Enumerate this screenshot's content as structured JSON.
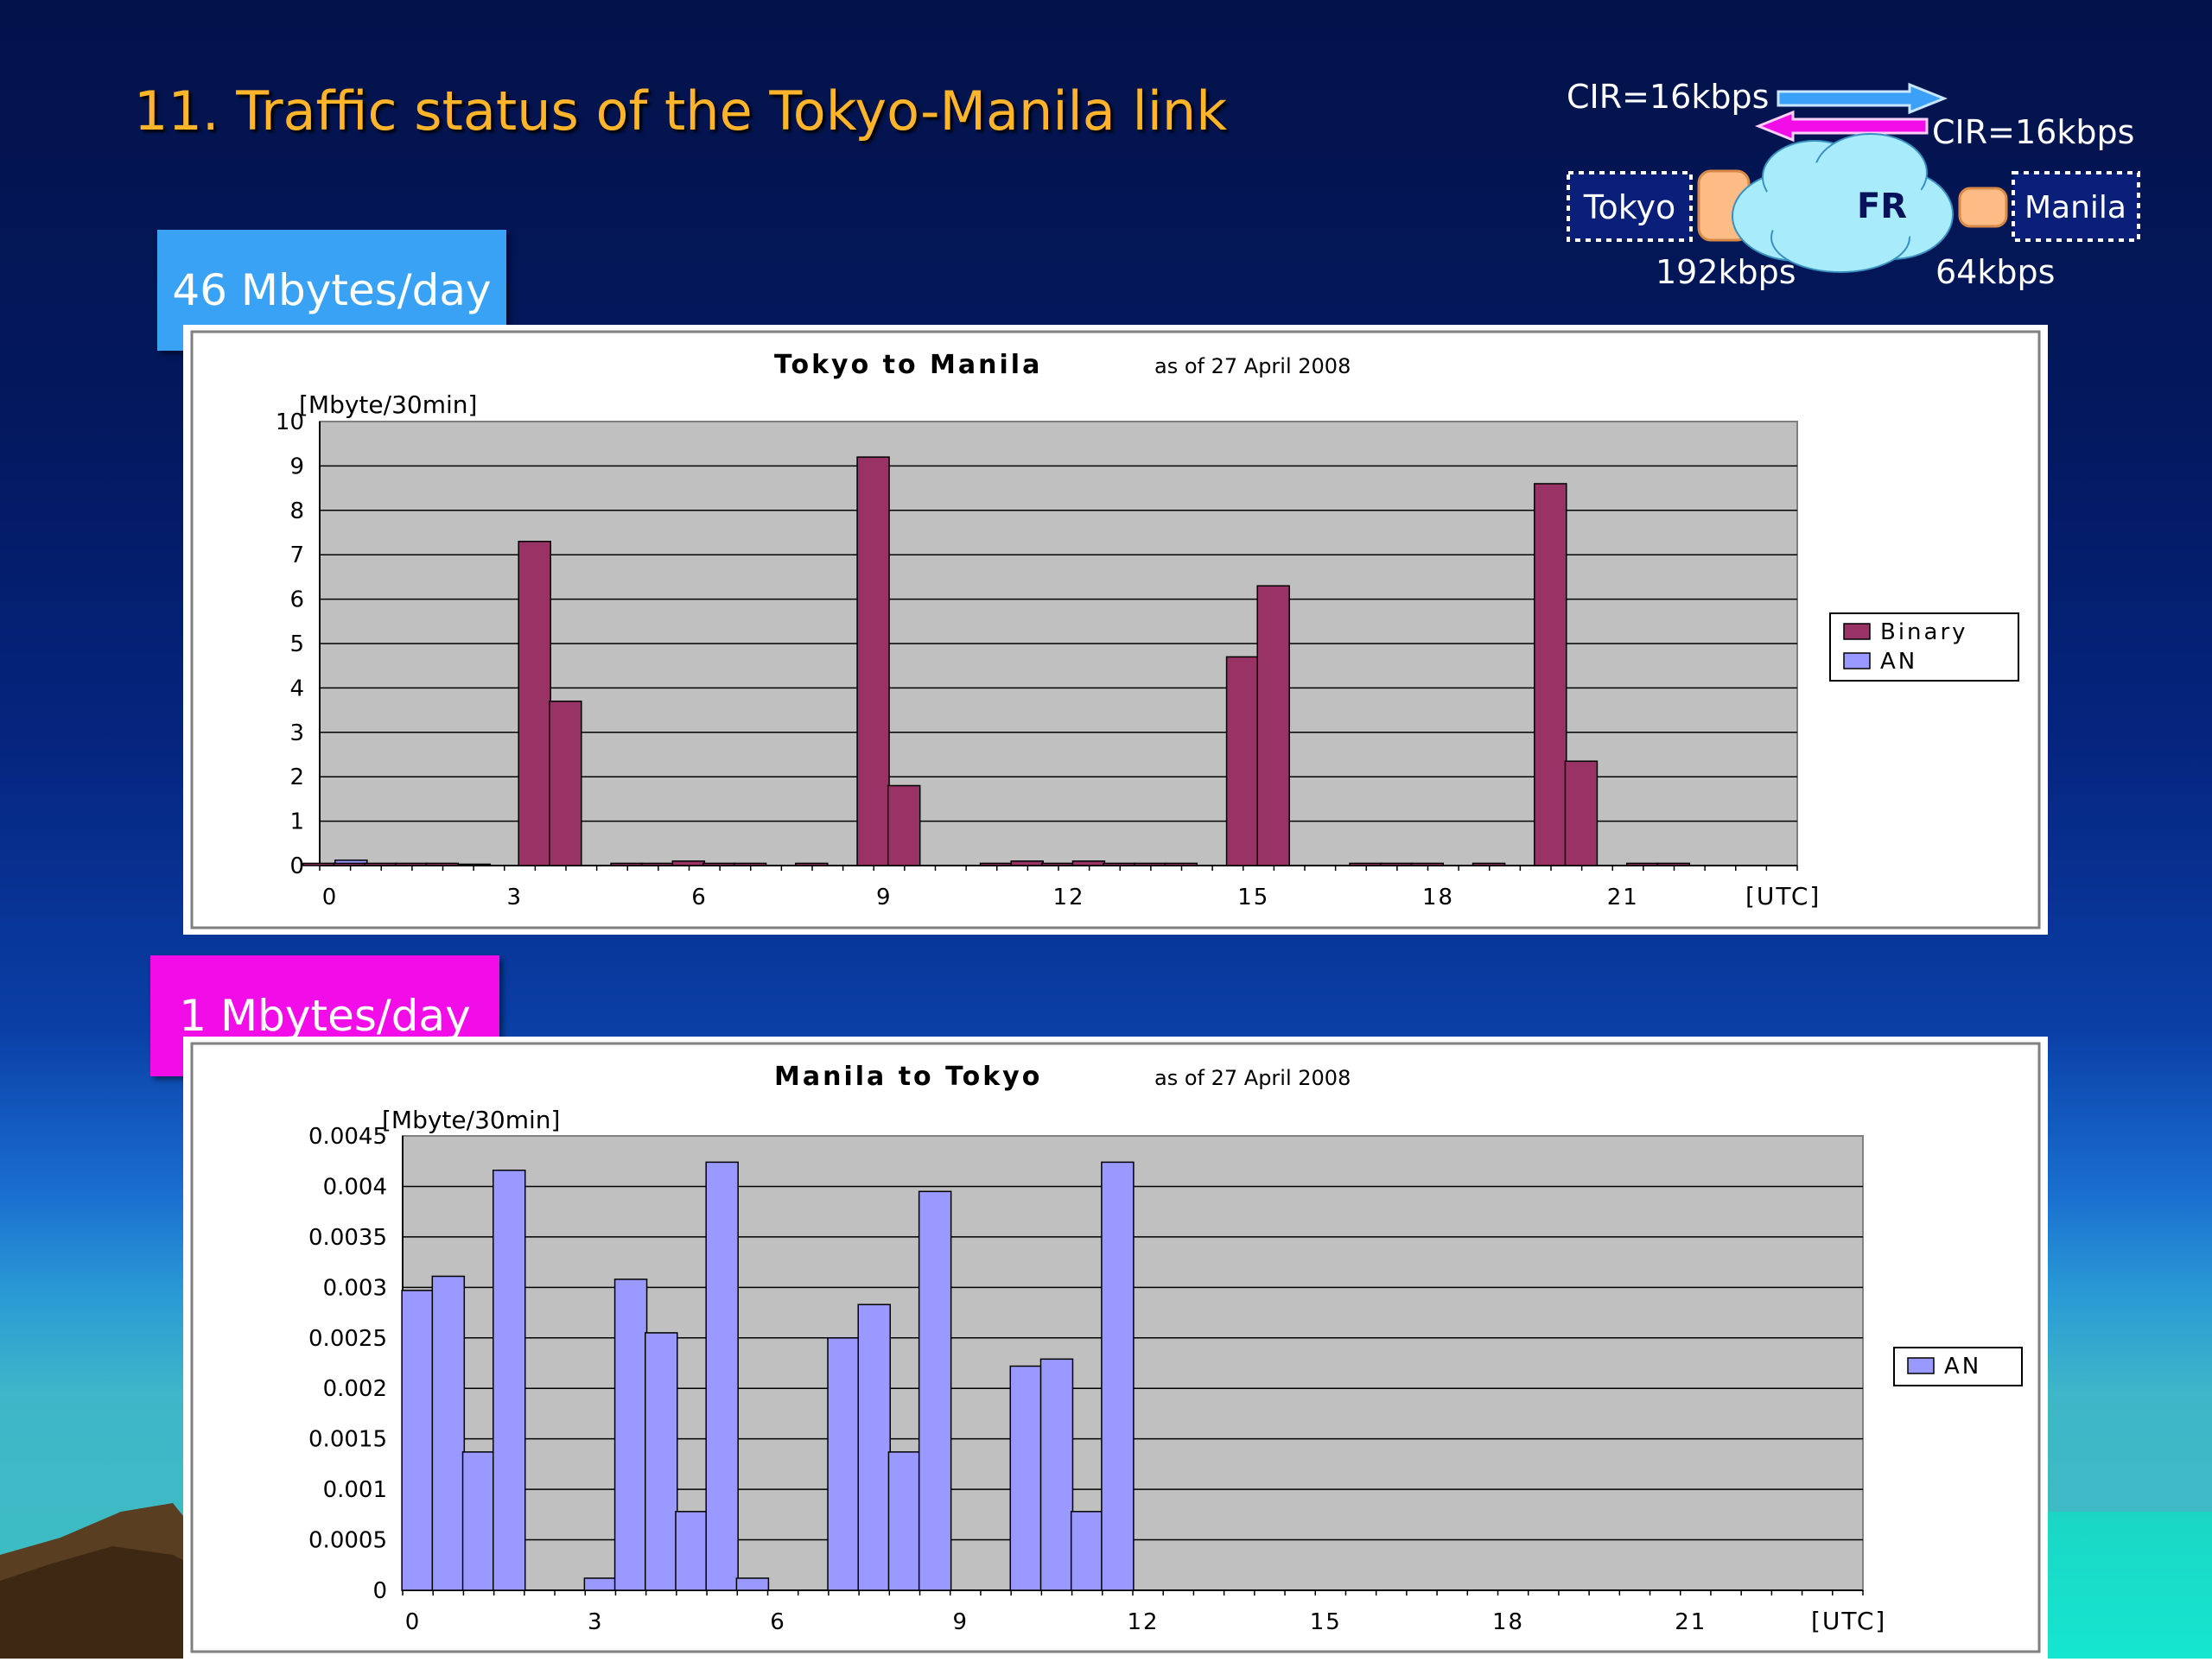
{
  "title": "11.  Traffic status of the Tokyo-Manila link",
  "callouts": [
    "46 Mbytes/day",
    "1 Mbytes/day"
  ],
  "diagram": {
    "cir_top": "CIR=16kbps",
    "cir_bottom": "CIR=16kbps",
    "tokyo": "Tokyo",
    "manila": "Manila",
    "cloud": "FR",
    "tokyo_rate": "192kbps",
    "manila_rate": "64kbps",
    "colors": {
      "arrow_blue": "#3aa0f8",
      "arrow_magenta": "#f20ce8",
      "box": "#0a1f7a",
      "cloud": "#a8ecfb"
    }
  },
  "chart_data": [
    {
      "type": "bar",
      "title": "Tokyo to Manila",
      "subtitle": "as of 27 April 2008",
      "ylabel": "[Mbyte/30min]",
      "xlabel": "[UTC]",
      "ylim": [
        0,
        10
      ],
      "yticks": [
        "0",
        "1",
        "2",
        "3",
        "4",
        "5",
        "6",
        "7",
        "8",
        "9",
        "10"
      ],
      "xticks": [
        "0",
        "3",
        "6",
        "9",
        "12",
        "15",
        "18",
        "21"
      ],
      "grid": true,
      "legend_position": "right",
      "series": [
        {
          "name": "Binary",
          "color": "#993366",
          "values": [
            0.05,
            0.05,
            0.05,
            0.05,
            0.05,
            0,
            0,
            7.3,
            3.7,
            0,
            0.05,
            0.05,
            0.1,
            0.05,
            0.05,
            0,
            0.05,
            0,
            9.2,
            1.8,
            0,
            0,
            0.05,
            0.1,
            0.05,
            0.1,
            0.05,
            0.05,
            0.05,
            0,
            4.7,
            6.3,
            0,
            0,
            0.05,
            0.05,
            0.05,
            0,
            0.05,
            0,
            8.6,
            2.35,
            0,
            0.05,
            0.05
          ]
        },
        {
          "name": "AN",
          "color": "#9999ff",
          "values": [
            0.12,
            0.03,
            0.03,
            0,
            0.03,
            0,
            0,
            0,
            0,
            0,
            0,
            0,
            0,
            0,
            0,
            0,
            0,
            0,
            0,
            0,
            0,
            0,
            0,
            0,
            0,
            0,
            0,
            0,
            0,
            0,
            0,
            0,
            0,
            0,
            0,
            0,
            0,
            0,
            0,
            0,
            0,
            0,
            0,
            0,
            0
          ]
        }
      ]
    },
    {
      "type": "bar",
      "title": "Manila to Tokyo",
      "subtitle": "as of 27 April 2008",
      "ylabel": "[Mbyte/30min]",
      "xlabel": "[UTC]",
      "ylim": [
        0,
        0.0045
      ],
      "yticks": [
        "0",
        "0.0005",
        "0.001",
        "0.0015",
        "0.002",
        "0.0025",
        "0.003",
        "0.0035",
        "0.004",
        "0.0045"
      ],
      "xticks": [
        "0",
        "3",
        "6",
        "9",
        "12",
        "15",
        "18",
        "21"
      ],
      "grid": true,
      "legend_position": "right",
      "series": [
        {
          "name": "AN",
          "color": "#9999ff",
          "values": [
            0.00297,
            0.00311,
            0.00137,
            0.00416,
            0,
            0,
            0.00012,
            0.00308,
            0.00255,
            0.00078,
            0.00424,
            0.00012,
            0,
            0,
            0.0025,
            0.00283,
            0.00137,
            0.00395,
            0,
            0,
            0.00222,
            0.00229,
            0.00078,
            0.00424
          ]
        }
      ]
    }
  ]
}
